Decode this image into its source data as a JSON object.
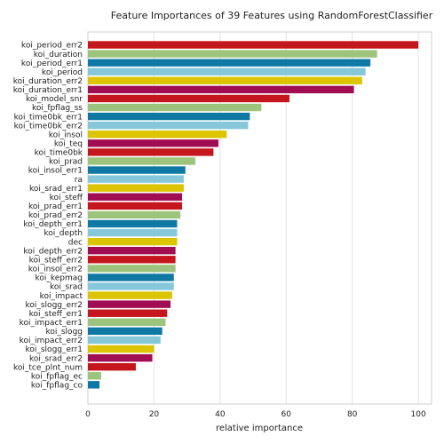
{
  "chart_data": {
    "type": "bar",
    "orientation": "horizontal",
    "title": "Feature Importances of 39 Features using RandomForestClassifier",
    "xlabel": "relative importance",
    "ylabel": "",
    "xlim": [
      0,
      104
    ],
    "xticks": [
      0,
      20,
      40,
      60,
      80,
      100
    ],
    "grid": true,
    "legend": "none",
    "palette": [
      "#c4161c",
      "#9dc47c",
      "#0f79a4",
      "#86c8da",
      "#dcc400",
      "#a00d52"
    ],
    "categories": [
      "koi_period_err2",
      "koi_duration",
      "koi_period_err1",
      "koi_period",
      "koi_duration_err2",
      "koi_duration_err1",
      "koi_model_snr",
      "koi_fpflag_ss",
      "koi_time0bk_err1",
      "koi_time0bk_err2",
      "koi_insol",
      "koi_teq",
      "koi_time0bk",
      "koi_prad",
      "koi_insol_err1",
      "ra",
      "koi_srad_err1",
      "koi_steff",
      "koi_prad_err1",
      "koi_prad_err2",
      "koi_depth_err1",
      "koi_depth",
      "dec",
      "koi_depth_err2",
      "koi_steff_err2",
      "koi_insol_err2",
      "koi_kepmag",
      "koi_srad",
      "koi_impact",
      "koi_slogg_err2",
      "koi_steff_err1",
      "koi_impact_err1",
      "koi_slogg",
      "koi_impact_err2",
      "koi_slogg_err1",
      "koi_srad_err2",
      "koi_tce_plnt_num",
      "koi_fpflag_ec",
      "koi_fpflag_co"
    ],
    "values": [
      100,
      87.5,
      85.5,
      84,
      83,
      80.5,
      61,
      52.5,
      49,
      48.5,
      42,
      39.5,
      38,
      32.5,
      29.5,
      29,
      29,
      28.5,
      28.5,
      28,
      27,
      27,
      27,
      26.5,
      26.5,
      26.5,
      26,
      26,
      25.5,
      25,
      24,
      23.5,
      22.5,
      22,
      20,
      19.5,
      14.5,
      4,
      3.5
    ]
  }
}
